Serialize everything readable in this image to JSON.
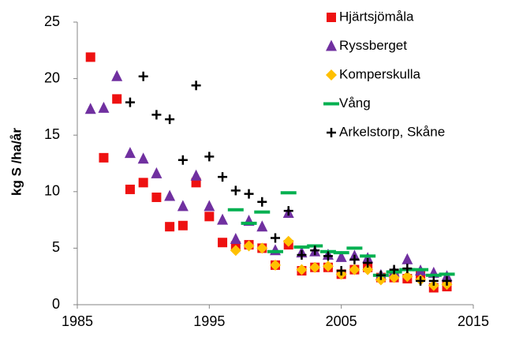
{
  "chart_data": {
    "type": "scatter",
    "y_label": "kg S /ha/år",
    "xlim": [
      1985,
      2015
    ],
    "xticks": [
      1985,
      1995,
      2005,
      2015
    ],
    "ylim": [
      0,
      25
    ],
    "yticks": [
      0,
      5,
      10,
      15,
      20,
      25
    ],
    "grid": false,
    "legend": "top-right",
    "series": [
      {
        "name": "Hjärtsjömåla",
        "color": "#ee1111",
        "marker": "square",
        "x": [
          1986,
          1987,
          1988,
          1989,
          1990,
          1991,
          1992,
          1993,
          1994,
          1995,
          1996,
          1997,
          1998,
          1999,
          2000,
          2001,
          2002,
          2003,
          2004,
          2005,
          2006,
          2007,
          2008,
          2009,
          2010,
          2011,
          2012,
          2013
        ],
        "values": [
          21.9,
          13.0,
          18.2,
          10.2,
          10.8,
          9.5,
          6.9,
          7.0,
          10.8,
          7.8,
          5.5,
          5.2,
          5.3,
          5.0,
          3.5,
          5.3,
          3.0,
          3.3,
          3.3,
          2.7,
          3.1,
          3.3,
          2.4,
          2.4,
          2.3,
          2.6,
          1.5,
          1.6
        ]
      },
      {
        "name": "Ryssberget",
        "color": "#7030a0",
        "marker": "triangle",
        "x": [
          1986,
          1987,
          1988,
          1989,
          1990,
          1991,
          1992,
          1993,
          1994,
          1995,
          1996,
          1997,
          1998,
          1999,
          2000,
          2001,
          2002,
          2003,
          2004,
          2005,
          2006,
          2007,
          2008,
          2009,
          2010,
          2011,
          2012,
          2013
        ],
        "values": [
          17.3,
          17.4,
          20.2,
          13.4,
          12.9,
          11.6,
          9.6,
          8.7,
          11.4,
          8.7,
          7.5,
          5.8,
          7.4,
          6.9,
          4.8,
          8.1,
          4.6,
          4.7,
          4.4,
          4.2,
          4.3,
          4.1,
          2.6,
          2.9,
          4.0,
          3.0,
          2.8,
          2.5
        ]
      },
      {
        "name": "Komperskulla",
        "color": "#ffc000",
        "marker": "diamond",
        "x": [
          1997,
          1998,
          1999,
          2000,
          2001,
          2002,
          2003,
          2004,
          2005,
          2006,
          2007,
          2008,
          2009,
          2010,
          2011,
          2012,
          2013
        ],
        "values": [
          4.8,
          5.2,
          5.0,
          3.5,
          5.6,
          3.1,
          3.3,
          3.4,
          2.7,
          3.1,
          3.1,
          2.2,
          2.4,
          2.5,
          2.2,
          1.7,
          1.8
        ]
      },
      {
        "name": "Vång",
        "color": "#00b050",
        "marker": "dash",
        "x": [
          1997,
          1998,
          1999,
          2000,
          2001,
          2002,
          2003,
          2004,
          2005,
          2006,
          2007,
          2008,
          2009,
          2010,
          2011,
          2012,
          2013
        ],
        "values": [
          8.4,
          7.2,
          8.2,
          4.7,
          9.9,
          5.1,
          5.2,
          4.7,
          4.6,
          5.0,
          4.3,
          2.6,
          2.9,
          3.1,
          3.1,
          2.6,
          2.7
        ]
      },
      {
        "name": "Arkelstorp, Skåne",
        "color": "#000000",
        "marker": "plus",
        "x": [
          1989,
          1990,
          1991,
          1992,
          1993,
          1994,
          1995,
          1996,
          1997,
          1998,
          1999,
          2000,
          2001,
          2002,
          2003,
          2004,
          2005,
          2006,
          2007,
          2008,
          2009,
          2010,
          2011,
          2012,
          2013
        ],
        "values": [
          17.9,
          20.2,
          16.8,
          16.4,
          12.8,
          19.4,
          13.1,
          11.3,
          10.1,
          9.8,
          9.1,
          5.9,
          8.3,
          4.4,
          4.8,
          4.3,
          3.0,
          4.0,
          3.7,
          2.6,
          3.1,
          3.2,
          2.1,
          2.1,
          2.1
        ]
      }
    ]
  }
}
